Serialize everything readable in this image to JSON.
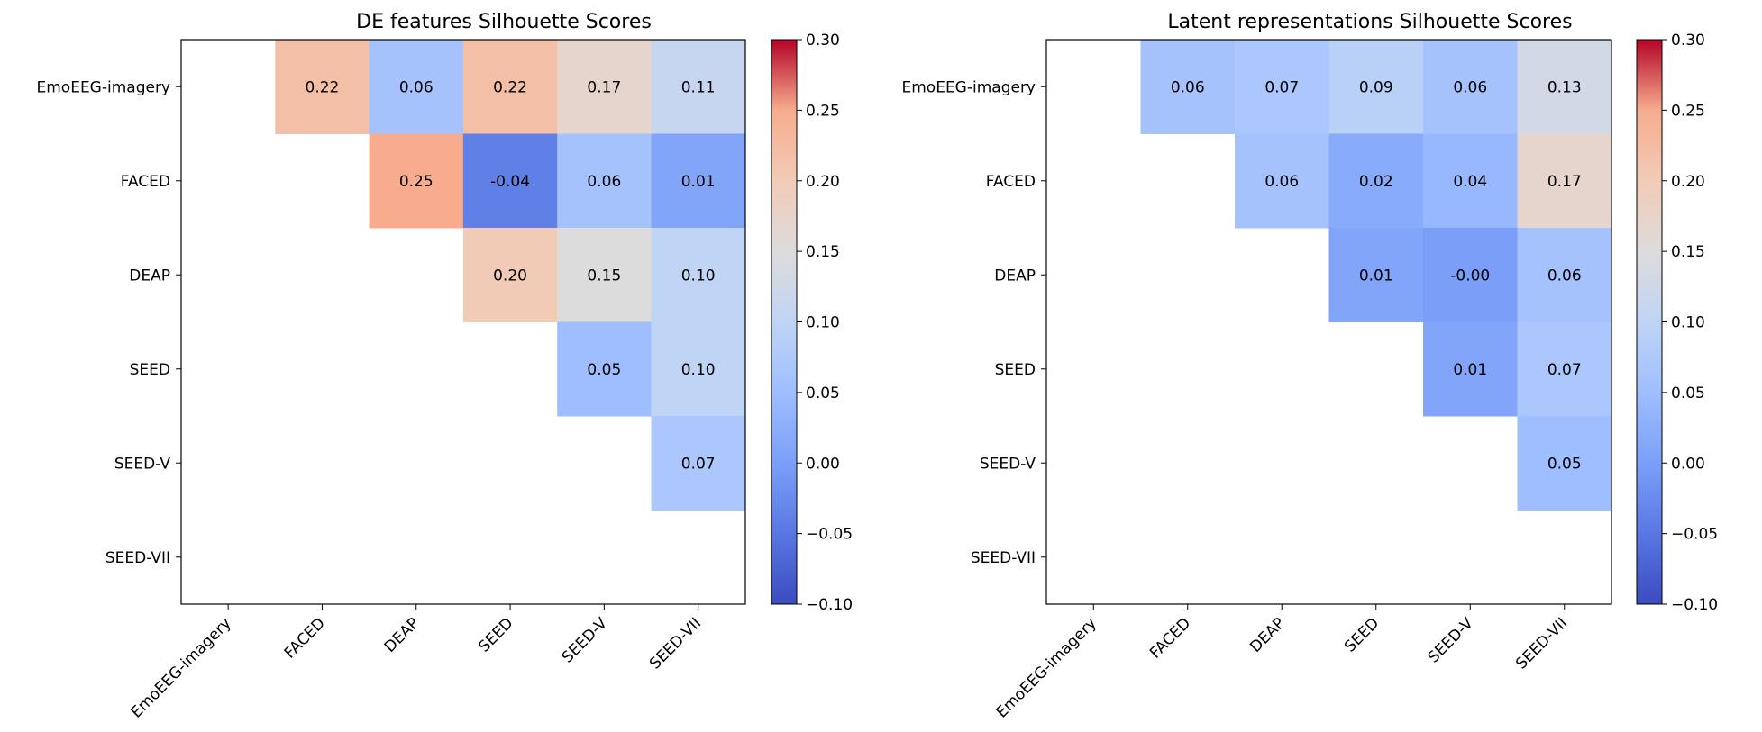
{
  "chart_data": [
    {
      "type": "heatmap",
      "title": "DE features Silhouette Scores",
      "row_labels": [
        "EmoEEG-imagery",
        "FACED",
        "DEAP",
        "SEED",
        "SEED-V",
        "SEED-VII"
      ],
      "col_labels": [
        "EmoEEG-imagery",
        "FACED",
        "DEAP",
        "SEED",
        "SEED-V",
        "SEED-VII"
      ],
      "values": [
        [
          null,
          0.22,
          0.06,
          0.22,
          0.17,
          0.11
        ],
        [
          null,
          null,
          0.25,
          -0.04,
          0.06,
          0.01
        ],
        [
          null,
          null,
          null,
          0.2,
          0.15,
          0.1
        ],
        [
          null,
          null,
          null,
          null,
          0.05,
          0.1
        ],
        [
          null,
          null,
          null,
          null,
          null,
          0.07
        ],
        [
          null,
          null,
          null,
          null,
          null,
          null
        ]
      ],
      "cell_labels": [
        [
          "",
          "0.22",
          "0.06",
          "0.22",
          "0.17",
          "0.11"
        ],
        [
          "",
          "",
          "0.25",
          "-0.04",
          "0.06",
          "0.01"
        ],
        [
          "",
          "",
          "",
          "0.20",
          "0.15",
          "0.10"
        ],
        [
          "",
          "",
          "",
          "",
          "0.05",
          "0.10"
        ],
        [
          "",
          "",
          "",
          "",
          "",
          "0.07"
        ],
        [
          "",
          "",
          "",
          "",
          "",
          ""
        ]
      ],
      "colorbar": {
        "cmap": "coolwarm",
        "range": [
          -0.1,
          0.3
        ],
        "ticks": [
          -0.1,
          -0.05,
          0.0,
          0.05,
          0.1,
          0.15,
          0.2,
          0.25,
          0.3
        ],
        "tick_labels": [
          "−0.10",
          "−0.05",
          "0.00",
          "0.05",
          "0.10",
          "0.15",
          "0.20",
          "0.25",
          "0.30"
        ]
      }
    },
    {
      "type": "heatmap",
      "title": "Latent representations Silhouette Scores",
      "row_labels": [
        "EmoEEG-imagery",
        "FACED",
        "DEAP",
        "SEED",
        "SEED-V",
        "SEED-VII"
      ],
      "col_labels": [
        "EmoEEG-imagery",
        "FACED",
        "DEAP",
        "SEED",
        "SEED-V",
        "SEED-VII"
      ],
      "values": [
        [
          null,
          0.06,
          0.07,
          0.09,
          0.06,
          0.13
        ],
        [
          null,
          null,
          0.06,
          0.02,
          0.04,
          0.17
        ],
        [
          null,
          null,
          null,
          0.01,
          -0.0,
          0.06
        ],
        [
          null,
          null,
          null,
          null,
          0.01,
          0.07
        ],
        [
          null,
          null,
          null,
          null,
          null,
          0.05
        ],
        [
          null,
          null,
          null,
          null,
          null,
          null
        ]
      ],
      "cell_labels": [
        [
          "",
          "0.06",
          "0.07",
          "0.09",
          "0.06",
          "0.13"
        ],
        [
          "",
          "",
          "0.06",
          "0.02",
          "0.04",
          "0.17"
        ],
        [
          "",
          "",
          "",
          "0.01",
          "-0.00",
          "0.06"
        ],
        [
          "",
          "",
          "",
          "",
          "0.01",
          "0.07"
        ],
        [
          "",
          "",
          "",
          "",
          "",
          "0.05"
        ],
        [
          "",
          "",
          "",
          "",
          "",
          ""
        ]
      ],
      "colorbar": {
        "cmap": "coolwarm",
        "range": [
          -0.1,
          0.3
        ],
        "ticks": [
          -0.1,
          -0.05,
          0.0,
          0.05,
          0.1,
          0.15,
          0.2,
          0.25,
          0.3
        ],
        "tick_labels": [
          "−0.10",
          "−0.05",
          "0.00",
          "0.05",
          "0.10",
          "0.15",
          "0.20",
          "0.25",
          "0.30"
        ]
      }
    }
  ]
}
